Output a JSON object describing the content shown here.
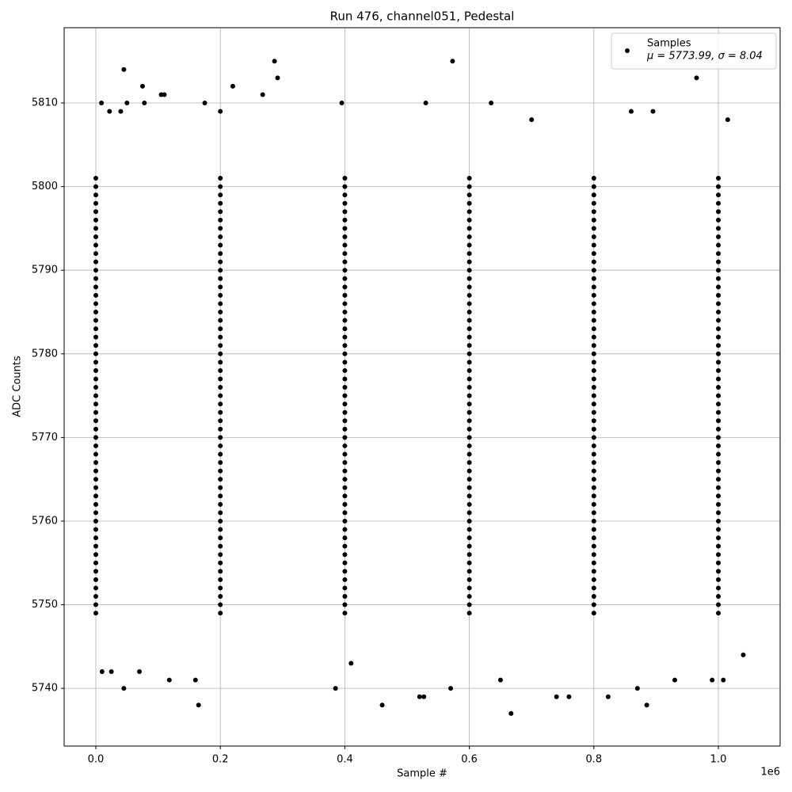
{
  "chart_data": {
    "type": "scatter",
    "title": "Run 476, channel051, Pedestal",
    "x_label": "Sample #",
    "y_label": "ADC Counts",
    "x_offset_label": "1e6",
    "xlim": [
      -50900,
      1099200
    ],
    "ylim": [
      5733.1,
      5819.0
    ],
    "xticks": [
      {
        "value": 0,
        "label": "0.0"
      },
      {
        "value": 200000,
        "label": "0.2"
      },
      {
        "value": 400000,
        "label": "0.4"
      },
      {
        "value": 600000,
        "label": "0.6"
      },
      {
        "value": 800000,
        "label": "0.8"
      },
      {
        "value": 1000000,
        "label": "1.0"
      }
    ],
    "yticks": [
      5740,
      5750,
      5760,
      5770,
      5780,
      5790,
      5800,
      5810
    ],
    "grid": true,
    "legend": "upper right",
    "legend_note": "μ = 5773.99, σ = 8.04",
    "series": [
      {
        "name": "Samples",
        "color": "#000000",
        "x": [
          45000,
          9000,
          50000,
          22000,
          40000,
          78000,
          75000,
          105000,
          110000,
          287000,
          292000,
          220000,
          268000,
          175000,
          200000,
          395000,
          530000,
          573000,
          635000,
          965000,
          895000,
          860000,
          1015000,
          700000,
          45000,
          165000,
          385000,
          460000,
          520000,
          527000,
          570000,
          667000,
          740000,
          760000,
          823000,
          885000,
          870000,
          10000,
          25000,
          70000,
          118000,
          160000,
          930000,
          990000,
          1008000,
          1040000,
          410000,
          650000,
          0,
          200000,
          400000,
          600000,
          800000,
          1000000,
          0,
          200000,
          400000,
          600000,
          800000,
          1000000,
          0,
          200000,
          400000,
          600000,
          800000,
          1000000,
          0,
          200000,
          400000,
          600000,
          800000,
          1000000,
          0,
          200000,
          400000,
          600000,
          800000,
          1000000,
          0,
          200000,
          400000,
          600000,
          800000,
          1000000,
          0,
          200000,
          400000,
          600000,
          800000,
          1000000,
          0,
          200000,
          400000,
          600000,
          800000,
          1000000,
          0,
          200000,
          400000,
          600000,
          800000,
          1000000,
          0,
          200000,
          400000,
          600000,
          800000,
          1000000,
          0,
          200000,
          400000,
          600000,
          800000,
          1000000,
          0,
          200000,
          400000,
          600000,
          800000,
          1000000,
          0,
          200000,
          400000,
          600000,
          800000,
          1000000,
          0,
          200000,
          400000,
          600000,
          800000,
          1000000,
          0,
          200000,
          400000,
          600000,
          800000,
          1000000,
          0,
          200000,
          400000,
          600000,
          800000,
          1000000,
          0,
          200000,
          400000,
          600000,
          800000,
          1000000,
          0,
          200000,
          400000,
          600000,
          800000,
          1000000,
          0,
          200000,
          400000,
          600000,
          800000,
          1000000,
          0,
          200000,
          400000,
          600000,
          800000,
          1000000,
          0,
          200000,
          400000,
          600000,
          800000,
          1000000,
          0,
          200000,
          400000,
          600000,
          800000,
          1000000,
          0,
          200000,
          400000,
          600000,
          800000,
          1000000,
          0,
          200000,
          400000,
          600000,
          800000,
          1000000,
          0,
          200000,
          400000,
          600000,
          800000,
          1000000,
          0,
          200000,
          400000,
          600000,
          800000,
          1000000,
          0,
          200000,
          400000,
          600000,
          800000,
          1000000,
          0,
          200000,
          400000,
          600000,
          800000,
          1000000,
          0,
          200000,
          400000,
          600000,
          800000,
          1000000,
          0,
          200000,
          400000,
          600000,
          800000,
          1000000,
          0,
          200000,
          400000,
          600000,
          800000,
          1000000,
          0,
          200000,
          400000,
          600000,
          800000,
          1000000,
          0,
          200000,
          400000,
          600000,
          800000,
          1000000,
          0,
          200000,
          400000,
          600000,
          800000,
          1000000,
          0,
          200000,
          400000,
          600000,
          800000,
          1000000,
          0,
          200000,
          400000,
          600000,
          800000,
          1000000,
          0,
          200000,
          400000,
          600000,
          800000,
          1000000,
          0,
          200000,
          400000,
          600000,
          800000,
          1000000,
          0,
          200000,
          400000,
          600000,
          800000,
          1000000,
          0,
          200000,
          400000,
          600000,
          800000,
          1000000,
          0,
          200000,
          400000,
          600000,
          800000,
          1000000,
          0,
          200000,
          400000,
          600000,
          800000,
          1000000,
          0,
          200000,
          400000,
          600000,
          800000,
          1000000,
          0,
          200000,
          400000,
          600000,
          800000,
          1000000,
          0,
          200000,
          400000,
          600000,
          800000,
          1000000,
          0,
          200000,
          400000,
          600000,
          800000,
          1000000,
          0,
          200000,
          400000,
          600000,
          800000,
          1000000,
          0,
          200000,
          400000,
          600000,
          800000,
          1000000,
          0,
          200000,
          400000,
          600000,
          800000,
          1000000,
          0,
          200000,
          400000,
          600000,
          800000,
          1000000,
          0,
          200000,
          400000,
          600000,
          800000,
          1000000,
          0,
          200000,
          400000,
          600000,
          800000,
          1000000,
          0,
          200000,
          400000,
          600000,
          800000,
          1000000
        ],
        "values": [
          5814,
          5810,
          5810,
          5809,
          5809,
          5810,
          5812,
          5811,
          5811,
          5815,
          5813,
          5812,
          5811,
          5810,
          5809,
          5810,
          5810,
          5815,
          5810,
          5813,
          5809,
          5809,
          5808,
          5808,
          5740,
          5738,
          5740,
          5738,
          5739,
          5739,
          5740,
          5737,
          5739,
          5739,
          5739,
          5738,
          5740,
          5742,
          5742,
          5742,
          5741,
          5741,
          5741,
          5741,
          5741,
          5744,
          5743,
          5741,
          5749,
          5749,
          5749,
          5749,
          5749,
          5749,
          5750,
          5750,
          5750,
          5750,
          5750,
          5750,
          5751,
          5751,
          5751,
          5751,
          5751,
          5751,
          5752,
          5752,
          5752,
          5752,
          5752,
          5752,
          5753,
          5753,
          5753,
          5753,
          5753,
          5753,
          5754,
          5754,
          5754,
          5754,
          5754,
          5754,
          5755,
          5755,
          5755,
          5755,
          5755,
          5755,
          5756,
          5756,
          5756,
          5756,
          5756,
          5756,
          5757,
          5757,
          5757,
          5757,
          5757,
          5757,
          5758,
          5758,
          5758,
          5758,
          5758,
          5758,
          5759,
          5759,
          5759,
          5759,
          5759,
          5759,
          5760,
          5760,
          5760,
          5760,
          5760,
          5760,
          5761,
          5761,
          5761,
          5761,
          5761,
          5761,
          5762,
          5762,
          5762,
          5762,
          5762,
          5762,
          5763,
          5763,
          5763,
          5763,
          5763,
          5763,
          5764,
          5764,
          5764,
          5764,
          5764,
          5764,
          5765,
          5765,
          5765,
          5765,
          5765,
          5765,
          5766,
          5766,
          5766,
          5766,
          5766,
          5766,
          5767,
          5767,
          5767,
          5767,
          5767,
          5767,
          5768,
          5768,
          5768,
          5768,
          5768,
          5768,
          5769,
          5769,
          5769,
          5769,
          5769,
          5769,
          5770,
          5770,
          5770,
          5770,
          5770,
          5770,
          5771,
          5771,
          5771,
          5771,
          5771,
          5771,
          5772,
          5772,
          5772,
          5772,
          5772,
          5772,
          5773,
          5773,
          5773,
          5773,
          5773,
          5773,
          5774,
          5774,
          5774,
          5774,
          5774,
          5774,
          5775,
          5775,
          5775,
          5775,
          5775,
          5775,
          5776,
          5776,
          5776,
          5776,
          5776,
          5776,
          5777,
          5777,
          5777,
          5777,
          5777,
          5777,
          5778,
          5778,
          5778,
          5778,
          5778,
          5778,
          5779,
          5779,
          5779,
          5779,
          5779,
          5779,
          5780,
          5780,
          5780,
          5780,
          5780,
          5780,
          5781,
          5781,
          5781,
          5781,
          5781,
          5781,
          5782,
          5782,
          5782,
          5782,
          5782,
          5782,
          5783,
          5783,
          5783,
          5783,
          5783,
          5783,
          5784,
          5784,
          5784,
          5784,
          5784,
          5784,
          5785,
          5785,
          5785,
          5785,
          5785,
          5785,
          5786,
          5786,
          5786,
          5786,
          5786,
          5786,
          5787,
          5787,
          5787,
          5787,
          5787,
          5787,
          5788,
          5788,
          5788,
          5788,
          5788,
          5788,
          5789,
          5789,
          5789,
          5789,
          5789,
          5789,
          5790,
          5790,
          5790,
          5790,
          5790,
          5790,
          5791,
          5791,
          5791,
          5791,
          5791,
          5791,
          5792,
          5792,
          5792,
          5792,
          5792,
          5792,
          5793,
          5793,
          5793,
          5793,
          5793,
          5793,
          5794,
          5794,
          5794,
          5794,
          5794,
          5794,
          5795,
          5795,
          5795,
          5795,
          5795,
          5795,
          5796,
          5796,
          5796,
          5796,
          5796,
          5796,
          5797,
          5797,
          5797,
          5797,
          5797,
          5797,
          5798,
          5798,
          5798,
          5798,
          5798,
          5798,
          5799,
          5799,
          5799,
          5799,
          5799,
          5799,
          5800,
          5800,
          5800,
          5800,
          5800,
          5800,
          5801,
          5801,
          5801,
          5801,
          5801,
          5801
        ]
      }
    ]
  }
}
